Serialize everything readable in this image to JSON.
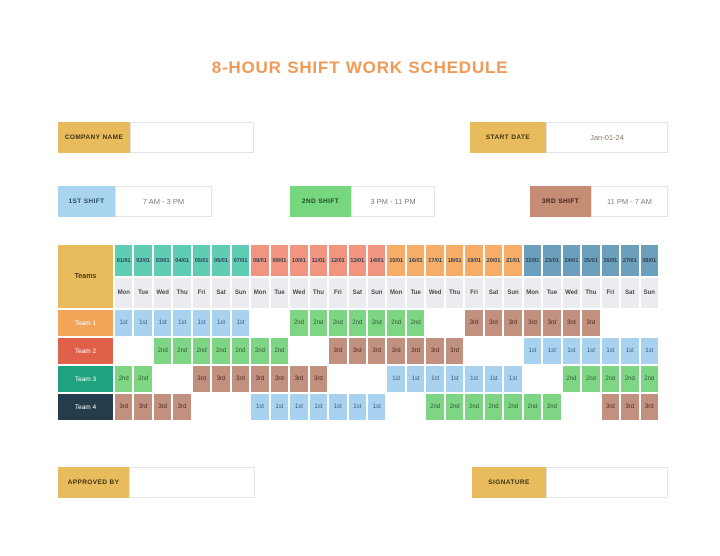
{
  "title": "8-HOUR SHIFT WORK SCHEDULE",
  "colors": {
    "accent_gold": "#E8BC5C",
    "title_orange": "#F09A57"
  },
  "fields": {
    "company_name": {
      "label": "COMPANY NAME",
      "value": ""
    },
    "start_date": {
      "label": "START DATE",
      "value": "Jan-01-24"
    },
    "approved_by": {
      "label": "APPROVED BY",
      "value": ""
    },
    "signature": {
      "label": "SIGNATURE",
      "value": ""
    }
  },
  "legend": [
    {
      "label": "1ST SHIFT",
      "time": "7 AM - 3 PM",
      "shift": "1st",
      "color": "#A9D4F0"
    },
    {
      "label": "2ND SHIFT",
      "time": "3 PM - 11 PM",
      "shift": "2nd",
      "color": "#76D77E"
    },
    {
      "label": "3RD SHIFT",
      "time": "11 PM - 7 AM",
      "shift": "3rd",
      "color": "#C48D74"
    }
  ],
  "table": {
    "teams_header": "Teams",
    "dates": [
      "01/01",
      "02/01",
      "03/01",
      "04/01",
      "05/01",
      "06/01",
      "07/01",
      "08/01",
      "09/01",
      "10/01",
      "11/01",
      "12/01",
      "13/01",
      "14/01",
      "15/01",
      "16/01",
      "17/01",
      "18/01",
      "19/01",
      "20/01",
      "21/01",
      "22/01",
      "23/01",
      "24/01",
      "25/01",
      "26/01",
      "27/01",
      "28/01"
    ],
    "day_names": [
      "Mon",
      "Tue",
      "Wed",
      "Thu",
      "Fri",
      "Sat",
      "Sun",
      "Mon",
      "Tue",
      "Wed",
      "Thu",
      "Fri",
      "Sat",
      "Sun",
      "Mon",
      "Tue",
      "Wed",
      "Thu",
      "Fri",
      "Sat",
      "Sun",
      "Mon",
      "Tue",
      "Wed",
      "Thu",
      "Fri",
      "Sat",
      "Sun"
    ],
    "week_colors": [
      "#5FCDB4",
      "#F19480",
      "#F7AD68",
      "#6C9FBC"
    ],
    "shift_colors": {
      "1st": "#A8D2F0",
      "2nd": "#7ED584",
      "3rd": "#C1907E"
    },
    "teams": [
      {
        "name": "Team 1",
        "color": "#F2A459",
        "schedule": [
          "1st",
          "1st",
          "1st",
          "1st",
          "1st",
          "1st",
          "1st",
          "",
          "",
          "2nd",
          "2nd",
          "2nd",
          "2nd",
          "2nd",
          "2nd",
          "2nd",
          "",
          "",
          "3rd",
          "3rd",
          "3rd",
          "3rd",
          "3rd",
          "3rd",
          "3rd",
          "",
          "",
          ""
        ]
      },
      {
        "name": "Team 2",
        "color": "#E0614A",
        "schedule": [
          "",
          "",
          "2nd",
          "2nd",
          "2nd",
          "2nd",
          "2nd",
          "2nd",
          "2nd",
          "",
          "",
          "3rd",
          "3rd",
          "3rd",
          "3rd",
          "3rd",
          "3rd",
          "3rd",
          "",
          "",
          "",
          "1st",
          "1st",
          "1st",
          "1st",
          "1st",
          "1st",
          "1st"
        ]
      },
      {
        "name": "Team 3",
        "color": "#1FA37F",
        "schedule": [
          "2nd",
          "2nd",
          "",
          "",
          "3rd",
          "3rd",
          "3rd",
          "3rd",
          "3rd",
          "3rd",
          "3rd",
          "",
          "",
          "",
          "1st",
          "1st",
          "1st",
          "1st",
          "1st",
          "1st",
          "1st",
          "",
          "",
          "2nd",
          "2nd",
          "2nd",
          "2nd",
          "2nd"
        ]
      },
      {
        "name": "Team 4",
        "color": "#253C4B",
        "schedule": [
          "3rd",
          "3rd",
          "3rd",
          "3rd",
          "",
          "",
          "",
          "1st",
          "1st",
          "1st",
          "1st",
          "1st",
          "1st",
          "1st",
          "",
          "",
          "2nd",
          "2nd",
          "2nd",
          "2nd",
          "2nd",
          "2nd",
          "2nd",
          "",
          "",
          "3rd",
          "3rd",
          "3rd"
        ]
      }
    ]
  }
}
